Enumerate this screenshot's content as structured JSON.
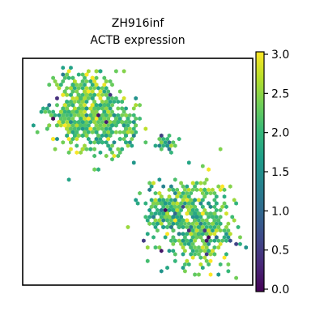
{
  "chart_data": {
    "type": "scatter",
    "subtype": "hexbin spatial expression map",
    "title": [
      "ZH916inf",
      "ACTB expression"
    ],
    "xlabel": "",
    "ylabel": "",
    "axes_ticks_visible": false,
    "grid": false,
    "colormap": {
      "name": "viridis",
      "range": [
        0.0,
        3.0
      ],
      "ticks": [
        "0.0",
        "0.5",
        "1.0",
        "1.5",
        "2.0",
        "2.5",
        "3.0"
      ],
      "tick_values": [
        0.0,
        0.5,
        1.0,
        1.5,
        2.0,
        2.5,
        3.0
      ],
      "placement": "right",
      "stops": [
        "#440154",
        "#482878",
        "#3e4989",
        "#31688e",
        "#26828e",
        "#1f9e89",
        "#35b779",
        "#6ece58",
        "#b5de2b",
        "#fde725"
      ]
    },
    "x_range": [
      0,
      100
    ],
    "y_range": [
      0,
      100
    ],
    "regions": [
      {
        "name": "upper-left cluster",
        "center": [
          26,
          76
        ],
        "spread": [
          10,
          12
        ],
        "count": 420,
        "typical_value": 2.3
      },
      {
        "name": "upper-left extension",
        "center": [
          40,
          70
        ],
        "spread": [
          8,
          9
        ],
        "count": 170,
        "typical_value": 2.1
      },
      {
        "name": "small middle patch",
        "center": [
          62,
          63
        ],
        "spread": [
          3,
          3
        ],
        "count": 22,
        "typical_value": 1.9
      },
      {
        "name": "lower-right cluster",
        "center": [
          76,
          27
        ],
        "spread": [
          10,
          13
        ],
        "count": 400,
        "typical_value": 2.2
      },
      {
        "name": "lower-right lobe",
        "center": [
          63,
          33
        ],
        "spread": [
          7,
          6
        ],
        "count": 140,
        "typical_value": 2.0
      }
    ]
  }
}
